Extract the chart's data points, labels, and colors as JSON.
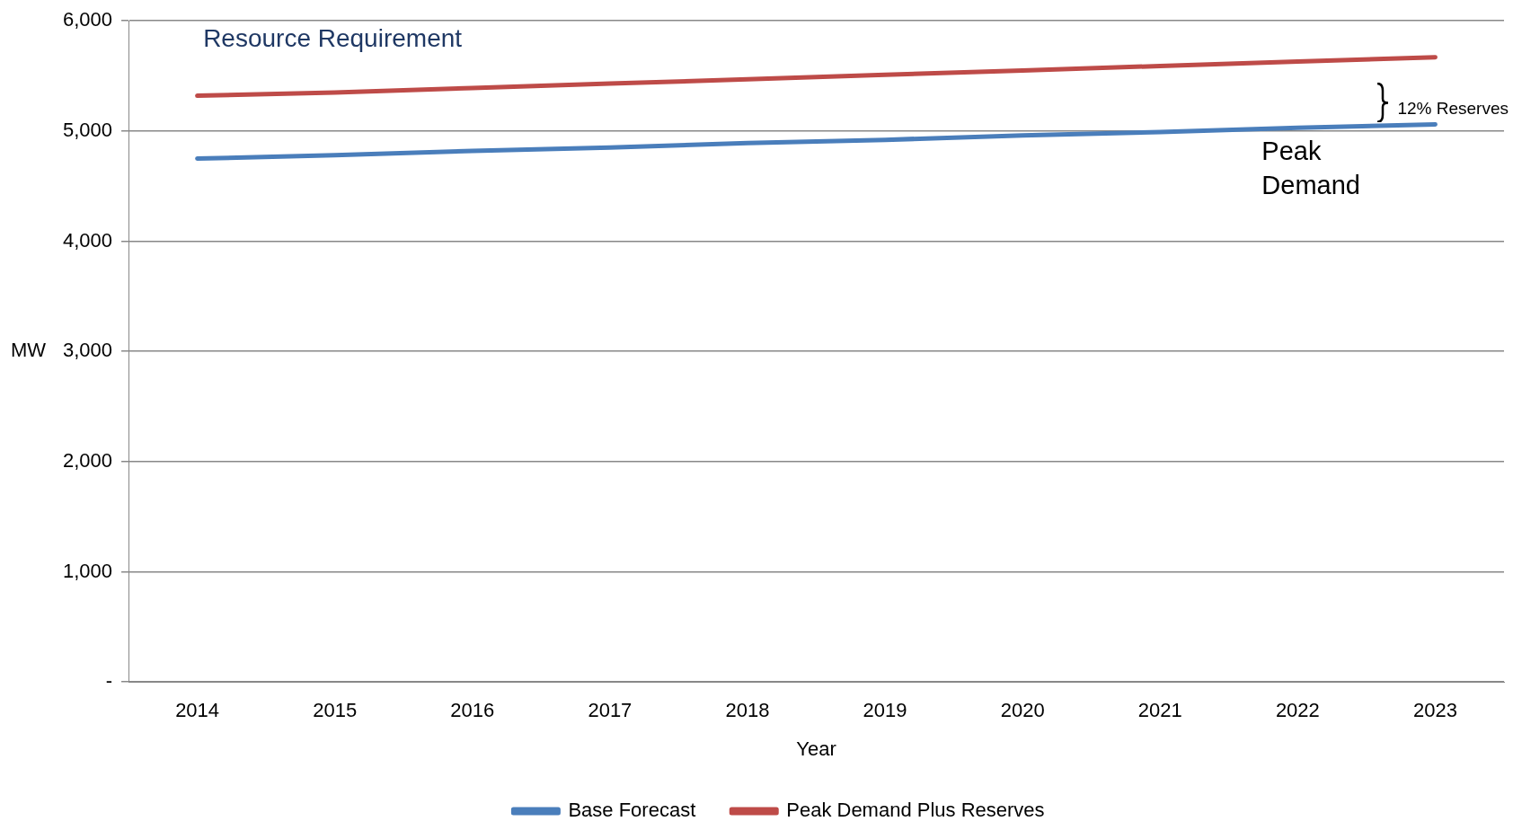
{
  "chart_data": {
    "type": "line",
    "xlabel": "Year",
    "ylabel": "MW",
    "categories": [
      "2014",
      "2015",
      "2016",
      "2017",
      "2018",
      "2019",
      "2020",
      "2021",
      "2022",
      "2023"
    ],
    "series": [
      {
        "name": "Base Forecast",
        "color": "#4a7ebb",
        "values": [
          4750,
          4780,
          4820,
          4850,
          4890,
          4920,
          4960,
          4990,
          5030,
          5060
        ]
      },
      {
        "name": "Peak Demand Plus Reserves",
        "color": "#be4b48",
        "values": [
          5320,
          5350,
          5390,
          5430,
          5470,
          5510,
          5550,
          5590,
          5630,
          5670
        ]
      }
    ],
    "ylim": [
      0,
      6000
    ],
    "yticks": [
      {
        "value": 0,
        "label": "-"
      },
      {
        "value": 1000,
        "label": "1,000"
      },
      {
        "value": 2000,
        "label": "2,000"
      },
      {
        "value": 3000,
        "label": "3,000"
      },
      {
        "value": 4000,
        "label": "4,000"
      },
      {
        "value": 5000,
        "label": "5,000"
      },
      {
        "value": 6000,
        "label": "6,000"
      }
    ],
    "grid": "y",
    "legend": "bottom",
    "marker": "none",
    "line_style": "solid",
    "annotations": [
      "Resource Requirement",
      "12% Reserves",
      "Peak Demand"
    ]
  }
}
